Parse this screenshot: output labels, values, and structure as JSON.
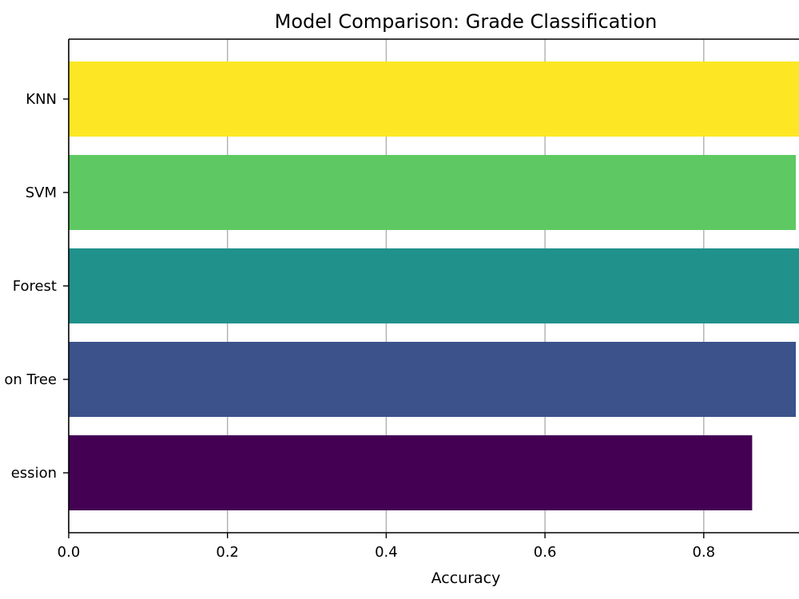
{
  "chart_data": {
    "type": "bar",
    "orientation": "horizontal",
    "title": "Model Comparison: Grade Classification",
    "xlabel": "Accuracy",
    "ylabel": "",
    "categories": [
      "Logistic Regression",
      "Decision Tree",
      "Random Forest",
      "SVM",
      "KNN"
    ],
    "displayed_labels": [
      "ession",
      "on Tree",
      "Forest",
      "SVM",
      "KNN"
    ],
    "values": [
      0.861,
      0.916,
      0.921,
      0.916,
      0.921
    ],
    "colors": [
      "#440154",
      "#3b528b",
      "#21918c",
      "#5ec962",
      "#fde725"
    ],
    "xlim": [
      0.0,
      0.92
    ],
    "xticks": [
      0.0,
      0.2,
      0.4,
      0.6,
      0.8
    ],
    "xtick_labels": [
      "0.0",
      "0.2",
      "0.4",
      "0.6",
      "0.8"
    ],
    "grid": "x-major",
    "grid_color": "#b0b0b0",
    "legend": "none"
  }
}
